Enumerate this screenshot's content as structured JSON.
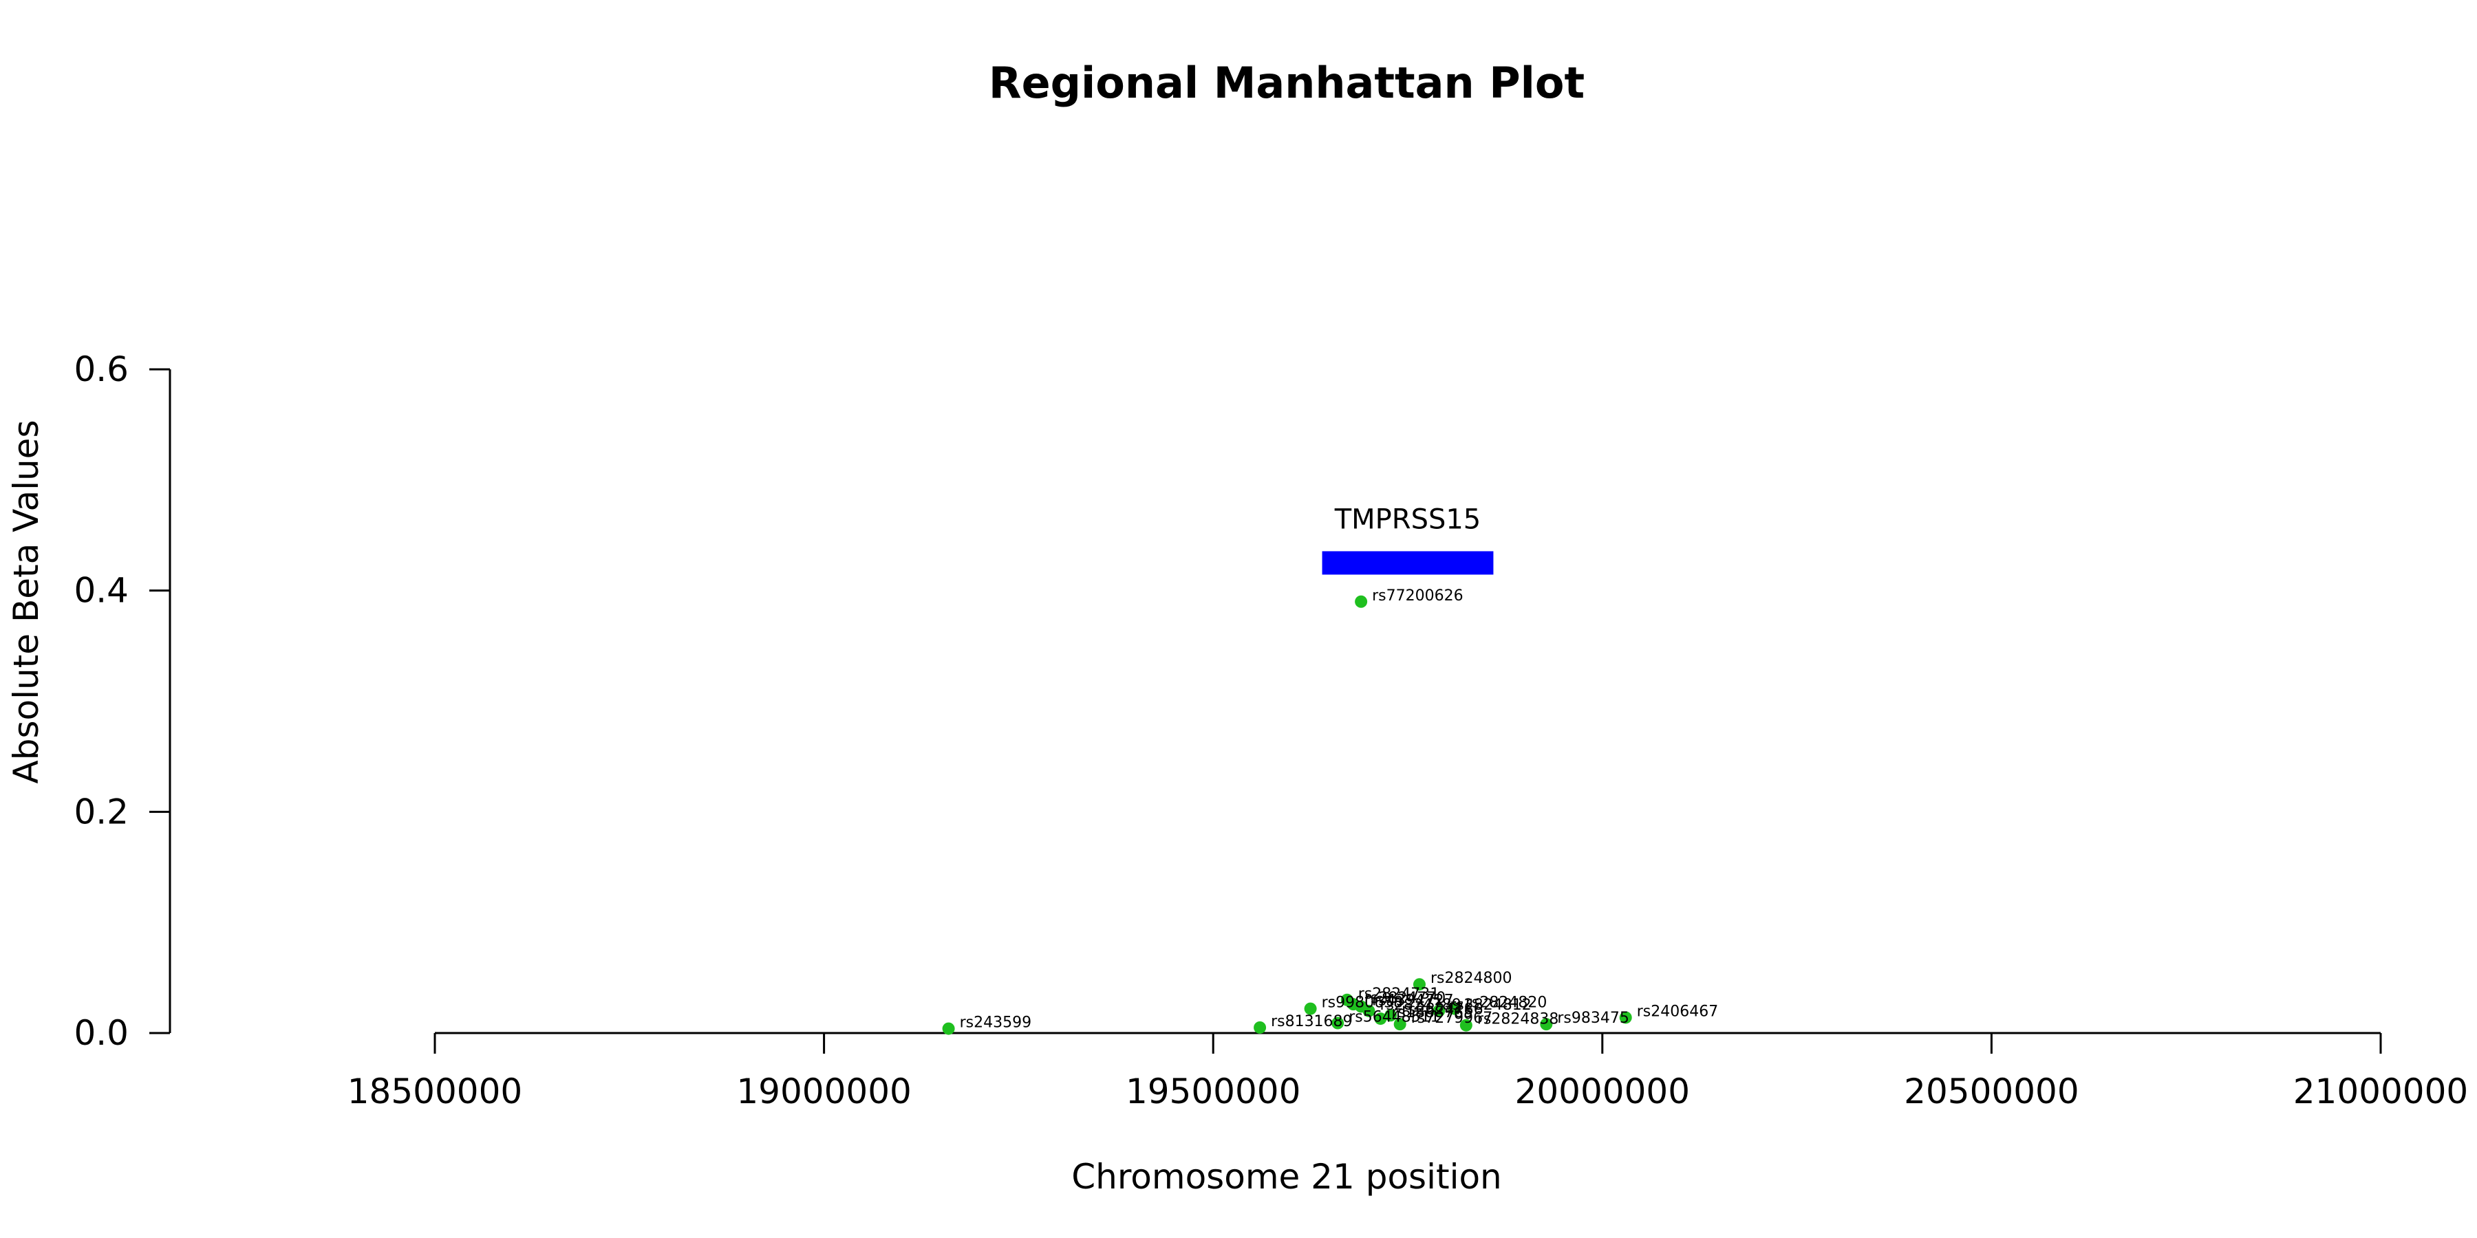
{
  "chart_data": {
    "type": "scatter",
    "title": "Regional Manhattan Plot",
    "xlabel": "Chromosome 21 position",
    "ylabel": "Absolute Beta Values",
    "xlim": [
      18500000,
      21000000
    ],
    "ylim": [
      0,
      0.6
    ],
    "x_ticks": [
      18500000,
      19000000,
      19500000,
      20000000,
      20500000,
      21000000
    ],
    "x_tick_labels": [
      "18500000",
      "19000000",
      "19500000",
      "20000000",
      "20500000",
      "21000000"
    ],
    "y_ticks": [
      0,
      0.2,
      0.4,
      0.6
    ],
    "y_tick_labels": [
      "0.0",
      "0.2",
      "0.4",
      "0.6"
    ],
    "point_color": "#1fbf1f",
    "gene": {
      "name": "TMPRSS15",
      "start": 19640000,
      "end": 19860000,
      "y": 0.425,
      "color": "#0000ff"
    },
    "points": [
      {
        "label": "rs243599",
        "x": 19160000,
        "y": 0.004
      },
      {
        "label": "rs8131689",
        "x": 19560000,
        "y": 0.005
      },
      {
        "label": "rs9980658",
        "x": 19625000,
        "y": 0.022
      },
      {
        "label": "rs56448511",
        "x": 19660000,
        "y": 0.009
      },
      {
        "label": "rs2824731",
        "x": 19672000,
        "y": 0.03
      },
      {
        "label": "rs2824770",
        "x": 19680000,
        "y": 0.026
      },
      {
        "label": "rs4394727",
        "x": 19690000,
        "y": 0.024
      },
      {
        "label": "rs77200626",
        "x": 19690000,
        "y": 0.39
      },
      {
        "label": "rs2824789",
        "x": 19700000,
        "y": 0.02
      },
      {
        "label": "rs1888765",
        "x": 19715000,
        "y": 0.013
      },
      {
        "label": "rs2824786",
        "x": 19728000,
        "y": 0.016
      },
      {
        "label": "rs7279967",
        "x": 19740000,
        "y": 0.008
      },
      {
        "label": "rs2824800",
        "x": 19765000,
        "y": 0.044
      },
      {
        "label": "rs2824812",
        "x": 19790000,
        "y": 0.02
      },
      {
        "label": "rs2824820",
        "x": 19810000,
        "y": 0.022
      },
      {
        "label": "rs2824838",
        "x": 19825000,
        "y": 0.007
      },
      {
        "label": "rs983475",
        "x": 19928000,
        "y": 0.008
      },
      {
        "label": "rs2406467",
        "x": 20030000,
        "y": 0.014
      }
    ]
  }
}
